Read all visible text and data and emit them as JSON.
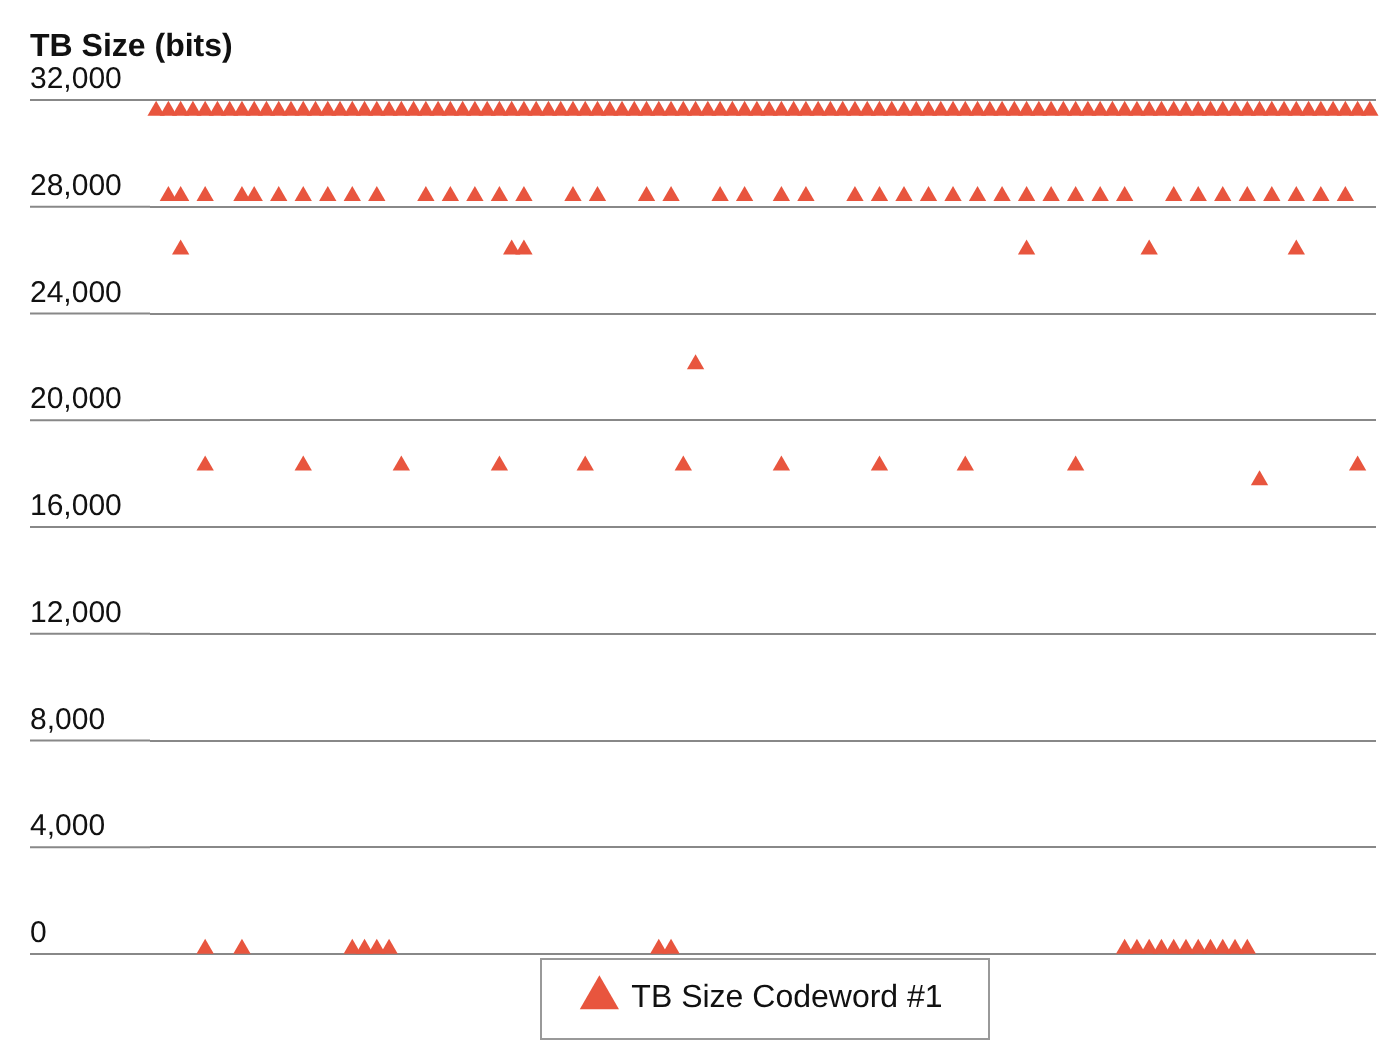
{
  "chart_data": {
    "type": "scatter",
    "title": "TB Size (bits)",
    "categories": [
      null,
      null,
      null,
      null,
      null,
      null,
      null,
      null,
      null,
      null,
      null,
      null,
      null,
      null,
      null,
      null,
      null,
      null,
      null,
      null,
      null,
      null,
      null,
      null,
      null,
      null,
      null,
      null,
      null,
      null,
      null,
      null,
      null,
      null,
      null,
      null,
      null,
      null,
      null,
      null,
      null,
      null,
      null,
      null,
      null,
      null,
      null,
      null,
      null,
      null,
      null,
      null,
      null,
      null,
      null,
      null,
      null,
      null,
      null,
      null,
      null,
      null,
      null,
      null,
      null,
      null,
      null,
      null,
      null,
      null,
      null,
      null,
      null,
      null,
      null,
      null,
      null,
      null,
      null,
      null,
      null,
      null,
      null,
      null,
      null,
      null,
      null,
      null,
      null,
      null,
      null,
      null,
      null,
      null,
      null,
      null,
      null,
      null,
      null,
      null
    ],
    "series": [
      {
        "name": "TB Size Codeword #1",
        "color": "#e8553e",
        "values": [
          31600,
          31600,
          31600,
          31600,
          31600,
          31600,
          31600,
          31600,
          31600,
          31600,
          31600,
          31600,
          31600,
          31600,
          31600,
          31600,
          31600,
          31600,
          31600,
          31600,
          31600,
          31600,
          31600,
          31600,
          31600,
          31600,
          31600,
          31600,
          31600,
          31600,
          31600,
          31600,
          31600,
          31600,
          31600,
          31600,
          31600,
          31600,
          31600,
          31600,
          31600,
          31600,
          31600,
          31600,
          31600,
          31600,
          31600,
          31600,
          31600,
          31600,
          31600,
          31600,
          31600,
          31600,
          31600,
          31600,
          31600,
          31600,
          31600,
          31600,
          31600,
          31600,
          31600,
          31600,
          31600,
          31600,
          31600,
          31600,
          31600,
          31600,
          31600,
          31600,
          31600,
          31600,
          31600,
          31600,
          31600,
          31600,
          31600,
          31600,
          31600,
          31600,
          31600,
          31600,
          31600,
          31600,
          31600,
          31600,
          31600,
          31600,
          31600,
          31600,
          31600,
          31600,
          31600,
          31600,
          31600,
          31600,
          31600,
          31600
        ]
      },
      {
        "color": "#e8553e",
        "values": [
          null,
          28400,
          28400,
          null,
          28400,
          null,
          null,
          28400,
          28400,
          null,
          28400,
          null,
          28400,
          null,
          28400,
          null,
          28400,
          null,
          28400,
          null,
          null,
          null,
          28400,
          null,
          28400,
          null,
          28400,
          null,
          28400,
          null,
          28400,
          null,
          null,
          null,
          28400,
          null,
          28400,
          null,
          null,
          null,
          28400,
          null,
          28400,
          null,
          null,
          null,
          28400,
          null,
          28400,
          null,
          null,
          28400,
          null,
          28400,
          null,
          null,
          null,
          28400,
          null,
          28400,
          null,
          28400,
          null,
          28400,
          null,
          28400,
          null,
          28400,
          null,
          28400,
          null,
          28400,
          null,
          28400,
          null,
          28400,
          null,
          28400,
          null,
          28400,
          null,
          null,
          null,
          28400,
          null,
          28400,
          null,
          28400,
          null,
          28400,
          null,
          28400,
          null,
          28400,
          null,
          28400,
          null,
          28400,
          null,
          null
        ]
      },
      {
        "color": "#e8553e",
        "values": [
          null,
          null,
          26400,
          null,
          18300,
          null,
          null,
          null,
          null,
          null,
          null,
          null,
          18300,
          null,
          null,
          null,
          null,
          null,
          null,
          null,
          18300,
          null,
          null,
          null,
          null,
          null,
          null,
          null,
          18300,
          26400,
          26400,
          null,
          null,
          null,
          null,
          18300,
          null,
          null,
          null,
          null,
          null,
          null,
          null,
          18300,
          22100,
          null,
          null,
          null,
          null,
          null,
          null,
          18300,
          null,
          null,
          null,
          null,
          null,
          null,
          null,
          18300,
          null,
          null,
          null,
          null,
          null,
          null,
          18300,
          null,
          null,
          null,
          null,
          26400,
          null,
          null,
          null,
          18300,
          null,
          null,
          null,
          null,
          null,
          26400,
          null,
          null,
          null,
          null,
          null,
          null,
          null,
          null,
          17750,
          null,
          null,
          26400,
          null,
          null,
          null,
          null,
          18300,
          null
        ]
      },
      {
        "color": "#e8553e",
        "values": [
          null,
          null,
          null,
          null,
          200,
          null,
          null,
          200,
          null,
          null,
          null,
          null,
          null,
          null,
          null,
          null,
          200,
          200,
          200,
          200,
          null,
          null,
          null,
          null,
          null,
          null,
          null,
          null,
          null,
          null,
          null,
          null,
          null,
          null,
          null,
          null,
          null,
          null,
          null,
          null,
          null,
          200,
          200,
          null,
          null,
          null,
          null,
          null,
          null,
          null,
          null,
          null,
          null,
          null,
          null,
          null,
          null,
          null,
          null,
          null,
          null,
          null,
          null,
          null,
          null,
          null,
          null,
          null,
          null,
          null,
          null,
          null,
          null,
          null,
          null,
          null,
          null,
          null,
          null,
          200,
          200,
          200,
          200,
          200,
          200,
          200,
          200,
          200,
          200,
          200,
          null,
          null,
          null,
          null,
          null,
          null,
          null,
          null,
          null,
          null
        ]
      }
    ],
    "ylim": [
      0,
      32000
    ],
    "yticks": [
      0,
      {
        "value": 4000,
        "label": "4,000"
      },
      {
        "value": 8000,
        "label": "8,000"
      },
      {
        "value": 12000,
        "label": "12,000"
      },
      {
        "value": 16000,
        "label": "16,000"
      },
      {
        "value": 20000,
        "label": "20,000"
      },
      {
        "value": 24000,
        "label": "24,000"
      },
      {
        "value": 28000,
        "label": "28,000"
      },
      {
        "value": 32000,
        "label": "32,000"
      }
    ],
    "grid": "y",
    "legend": "bottom",
    "marker": "triangle",
    "tick_labels": "y"
  }
}
